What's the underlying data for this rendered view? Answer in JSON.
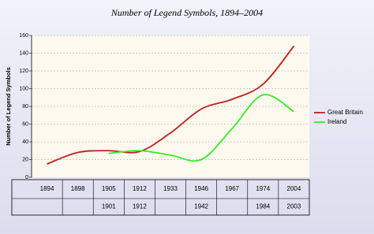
{
  "chart_data": {
    "type": "line",
    "title": "Number of Legend Symbols, 1894–2004",
    "y_label": "Number of Legend Symbols",
    "categories": [
      "1894",
      "1898",
      "1905",
      "1912",
      "1933",
      "1946",
      "1967",
      "1974",
      "2004"
    ],
    "categories2": [
      null,
      null,
      "1901",
      "1912",
      null,
      "1942",
      null,
      "1984",
      "2003"
    ],
    "series": [
      {
        "name": "Great Britain",
        "color": "#c0201c",
        "values": [
          15,
          28,
          30,
          29,
          50,
          77,
          88,
          105,
          148
        ]
      },
      {
        "name": "Ireland",
        "color": "#33ee22",
        "values": [
          null,
          null,
          27,
          30,
          25,
          20,
          55,
          93,
          74
        ]
      }
    ],
    "ylim": [
      0,
      160
    ],
    "yticks": [
      0,
      20,
      40,
      60,
      80,
      100,
      120,
      140,
      160
    ],
    "grid": true,
    "legend": "right"
  }
}
